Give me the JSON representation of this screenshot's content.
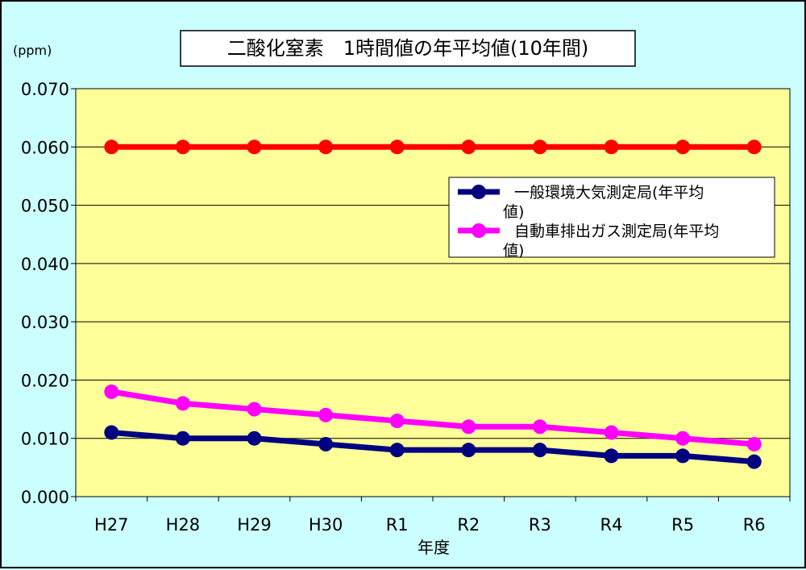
{
  "chart_data": {
    "type": "line",
    "title": "二酸化窒素　1時間値の年平均値(10年間)",
    "unit": "(ppm)",
    "xlabel": "年度",
    "ylabel": "",
    "ylim": [
      0,
      0.07
    ],
    "yticks": [
      "0.000",
      "0.010",
      "0.020",
      "0.030",
      "0.040",
      "0.050",
      "0.060",
      "0.070"
    ],
    "categories": [
      "H27",
      "H28",
      "H29",
      "H30",
      "R1",
      "R2",
      "R3",
      "R4",
      "R5",
      "R6"
    ],
    "grid": true,
    "legend_position": "right",
    "series": [
      {
        "name": "一般環境大気測定局(年平均値)",
        "legend_lines": [
          "一般環境大気測定局(年平均",
          "値)"
        ],
        "color": "#000080",
        "values": [
          0.011,
          0.01,
          0.01,
          0.009,
          0.008,
          0.008,
          0.008,
          0.007,
          0.007,
          0.006
        ]
      },
      {
        "name": "自動車排出ガス測定局(年平均値)",
        "legend_lines": [
          "自動車排出ガス測定局(年平均",
          "値)"
        ],
        "color": "#ff00ff",
        "values": [
          0.018,
          0.016,
          0.015,
          0.014,
          0.013,
          0.012,
          0.012,
          0.011,
          0.01,
          0.009
        ]
      },
      {
        "color": "#ff0000",
        "values": [
          0.06,
          0.06,
          0.06,
          0.06,
          0.06,
          0.06,
          0.06,
          0.06,
          0.06,
          0.06
        ]
      }
    ],
    "colors": {
      "plot_background": "#ffff99",
      "chart_background": "#ccffff",
      "gridline": "#000000"
    }
  }
}
